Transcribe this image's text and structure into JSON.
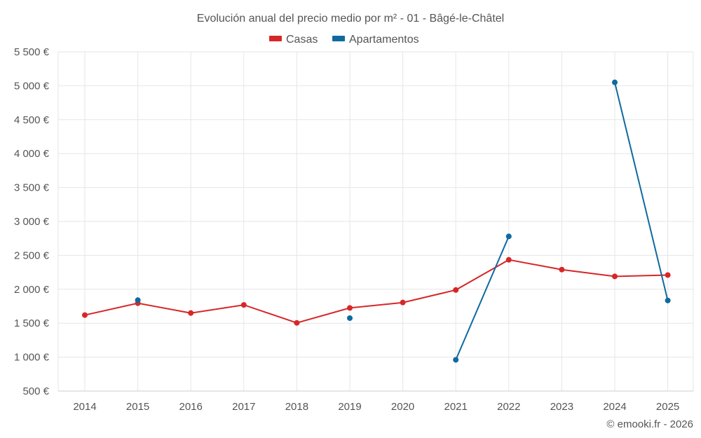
{
  "chart_data": {
    "type": "line",
    "title": "Evolución anual del precio medio por m² - 01 - Bâgé-le-Châtel",
    "categories": [
      "2014",
      "2015",
      "2016",
      "2017",
      "2018",
      "2019",
      "2020",
      "2021",
      "2022",
      "2023",
      "2024",
      "2025"
    ],
    "series": [
      {
        "name": "Casas",
        "color": "#d62728",
        "values": [
          1620,
          1795,
          1650,
          1770,
          1505,
          1725,
          1805,
          1990,
          2435,
          2290,
          2190,
          2210
        ]
      },
      {
        "name": "Apartamentos",
        "color": "#0f6aa0",
        "values": [
          null,
          1840,
          null,
          null,
          null,
          1575,
          null,
          960,
          2780,
          null,
          5050,
          1835
        ]
      }
    ],
    "ylim": [
      500,
      5500
    ],
    "yticks": [
      500,
      1000,
      1500,
      2000,
      2500,
      3000,
      3500,
      4000,
      4500,
      5000,
      5500
    ],
    "ytick_labels": [
      "500 €",
      "1 000 €",
      "1 500 €",
      "2 000 €",
      "2 500 €",
      "3 000 €",
      "3 500 €",
      "4 000 €",
      "4 500 €",
      "5 000 €",
      "5 500 €"
    ],
    "grid": true,
    "legend_position": "top-center",
    "credit": "© emooki.fr - 2026"
  }
}
